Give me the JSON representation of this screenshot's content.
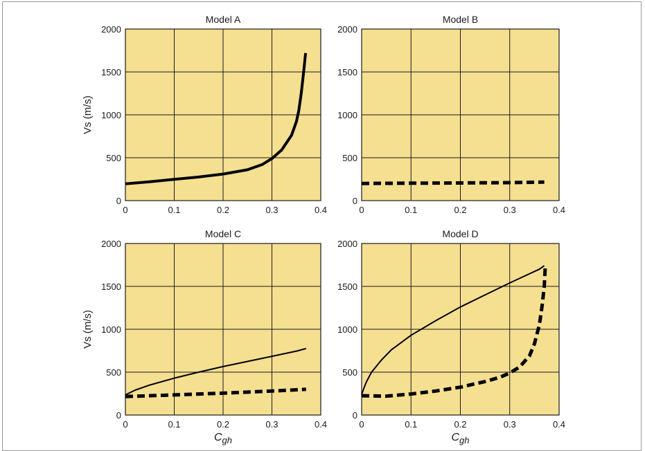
{
  "figure": {
    "plot_bg": "#F5DF91",
    "grid_color": "#1a1a1a",
    "curve_color": "#000000",
    "xlabel_main": "C",
    "xlabel_sub": "gh",
    "ylabel": "Vs (m/s)"
  },
  "chart_data": [
    {
      "type": "line",
      "title": "Model A",
      "ylabel": "Vs (m/s)",
      "xlabel": "",
      "xlim": [
        0,
        0.4
      ],
      "ylim": [
        0,
        2000
      ],
      "x_ticks": [
        "0",
        "0.1",
        "0.2",
        "0.3",
        "0.4"
      ],
      "y_ticks": [
        "0",
        "500",
        "1000",
        "1500",
        "2000"
      ],
      "grid": true,
      "series": [
        {
          "style": "thick-solid",
          "points": [
            [
              0,
              195
            ],
            [
              0.05,
              220
            ],
            [
              0.1,
              248
            ],
            [
              0.15,
              275
            ],
            [
              0.2,
              310
            ],
            [
              0.25,
              360
            ],
            [
              0.28,
              420
            ],
            [
              0.3,
              490
            ],
            [
              0.32,
              590
            ],
            [
              0.34,
              760
            ],
            [
              0.35,
              920
            ],
            [
              0.355,
              1050
            ],
            [
              0.36,
              1250
            ],
            [
              0.365,
              1500
            ],
            [
              0.369,
              1720
            ]
          ]
        }
      ]
    },
    {
      "type": "line",
      "title": "Model B",
      "ylabel": "",
      "xlabel": "",
      "xlim": [
        0,
        0.4
      ],
      "ylim": [
        0,
        2000
      ],
      "x_ticks": [
        "0",
        "0.1",
        "0.2",
        "0.3",
        "0.4"
      ],
      "y_ticks": [
        "0",
        "500",
        "1000",
        "1500",
        "2000"
      ],
      "grid": true,
      "series": [
        {
          "style": "dashed",
          "points": [
            [
              0,
              200
            ],
            [
              0.1,
              203
            ],
            [
              0.2,
              206
            ],
            [
              0.3,
              210
            ],
            [
              0.37,
              215
            ]
          ]
        }
      ]
    },
    {
      "type": "line",
      "title": "Model C",
      "ylabel": "Vs (m/s)",
      "xlabel": "Cgh",
      "xlim": [
        0,
        0.4
      ],
      "ylim": [
        0,
        2000
      ],
      "x_ticks": [
        "0",
        "0.1",
        "0.2",
        "0.3",
        "0.4"
      ],
      "y_ticks": [
        "0",
        "500",
        "1000",
        "1500",
        "2000"
      ],
      "grid": true,
      "series": [
        {
          "style": "thin-solid",
          "points": [
            [
              0,
              235
            ],
            [
              0.02,
              290
            ],
            [
              0.05,
              350
            ],
            [
              0.1,
              430
            ],
            [
              0.15,
              500
            ],
            [
              0.2,
              565
            ],
            [
              0.25,
              625
            ],
            [
              0.3,
              685
            ],
            [
              0.35,
              745
            ],
            [
              0.37,
              775
            ]
          ]
        },
        {
          "style": "dashed",
          "points": [
            [
              0,
              215
            ],
            [
              0.1,
              235
            ],
            [
              0.2,
              255
            ],
            [
              0.3,
              280
            ],
            [
              0.37,
              300
            ]
          ]
        }
      ]
    },
    {
      "type": "line",
      "title": "Model D",
      "ylabel": "",
      "xlabel": "Cgh",
      "xlim": [
        0,
        0.4
      ],
      "ylim": [
        0,
        2000
      ],
      "x_ticks": [
        "0",
        "0.1",
        "0.2",
        "0.3",
        "0.4"
      ],
      "y_ticks": [
        "0",
        "500",
        "1000",
        "1500",
        "2000"
      ],
      "grid": true,
      "series": [
        {
          "style": "thin-solid",
          "points": [
            [
              0,
              240
            ],
            [
              0.005,
              320
            ],
            [
              0.01,
              390
            ],
            [
              0.02,
              500
            ],
            [
              0.04,
              640
            ],
            [
              0.06,
              760
            ],
            [
              0.1,
              930
            ],
            [
              0.15,
              1100
            ],
            [
              0.2,
              1260
            ],
            [
              0.25,
              1400
            ],
            [
              0.3,
              1540
            ],
            [
              0.33,
              1620
            ],
            [
              0.36,
              1700
            ],
            [
              0.37,
              1740
            ]
          ]
        },
        {
          "style": "dashed",
          "points": [
            [
              0,
              225
            ],
            [
              0.05,
              220
            ],
            [
              0.1,
              245
            ],
            [
              0.15,
              280
            ],
            [
              0.2,
              325
            ],
            [
              0.25,
              390
            ],
            [
              0.28,
              440
            ],
            [
              0.3,
              490
            ],
            [
              0.32,
              560
            ],
            [
              0.34,
              690
            ],
            [
              0.35,
              830
            ],
            [
              0.36,
              1050
            ],
            [
              0.365,
              1250
            ],
            [
              0.37,
              1500
            ],
            [
              0.372,
              1720
            ]
          ]
        }
      ]
    }
  ]
}
